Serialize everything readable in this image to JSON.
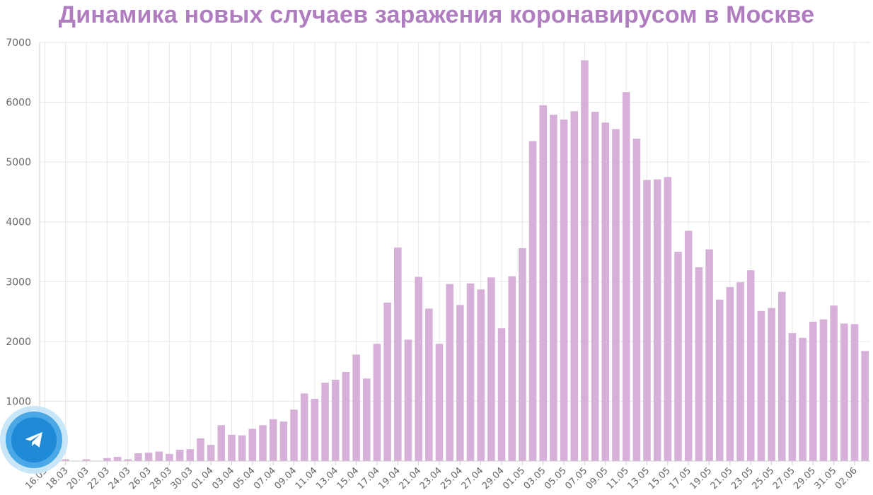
{
  "colors": {
    "title": "#b07cc0",
    "bar": "#d6b0d9",
    "grid": "#e6e6e6",
    "axis": "#cccccc",
    "tick_label": "#666666",
    "telegram_outer": "#c9e6f8",
    "telegram_mid": "#4aa8e6",
    "telegram_core": "#1f8ad6"
  },
  "telegram_button": {
    "icon": "telegram-paper-plane-icon"
  },
  "chart_data": {
    "type": "bar",
    "title": "Динамика новых случаев заражения коронавирусом в Москве",
    "xlabel": "",
    "ylabel": "",
    "ylim": [
      0,
      7000
    ],
    "yticks": [
      0,
      1000,
      2000,
      3000,
      4000,
      5000,
      6000,
      7000
    ],
    "grid": true,
    "legend": "none",
    "categories": [
      "16.03",
      "17.03",
      "18.03",
      "19.03",
      "20.03",
      "21.03",
      "22.03",
      "23.03",
      "24.03",
      "25.03",
      "26.03",
      "27.03",
      "28.03",
      "29.03",
      "30.03",
      "31.03",
      "01.04",
      "02.04",
      "03.04",
      "04.04",
      "05.04",
      "06.04",
      "07.04",
      "08.04",
      "09.04",
      "10.04",
      "11.04",
      "12.04",
      "13.04",
      "14.04",
      "15.04",
      "16.04",
      "17.04",
      "18.04",
      "19.04",
      "20.04",
      "21.04",
      "22.04",
      "23.04",
      "24.04",
      "25.04",
      "26.04",
      "27.04",
      "28.04",
      "29.04",
      "30.04",
      "01.05",
      "02.05",
      "03.05",
      "04.05",
      "05.05",
      "06.05",
      "07.05",
      "08.05",
      "09.05",
      "10.05",
      "11.05",
      "12.05",
      "13.05",
      "14.05",
      "15.05",
      "16.05",
      "17.05",
      "18.05",
      "19.05",
      "20.05",
      "21.05",
      "22.05",
      "23.05",
      "24.05",
      "25.05",
      "26.05",
      "27.05",
      "28.05",
      "29.05",
      "30.05",
      "31.05",
      "01.06",
      "02.06",
      "03.06"
    ],
    "tick_labels": [
      "16.03",
      "18.03",
      "20.03",
      "22.03",
      "24.03",
      "26.03",
      "28.03",
      "30.03",
      "01.04",
      "03.04",
      "05.04",
      "07.04",
      "09.04",
      "11.04",
      "13.04",
      "15.04",
      "17.04",
      "19.04",
      "21.04",
      "23.04",
      "25.04",
      "27.04",
      "29.04",
      "01.05",
      "03.05",
      "05.05",
      "07.05",
      "09.05",
      "11.05",
      "13.05",
      "15.05",
      "17.05",
      "19.05",
      "21.05",
      "23.05",
      "25.05",
      "27.05",
      "29.05",
      "31.05",
      "02.06"
    ],
    "values": [
      3,
      5,
      30,
      6,
      30,
      4,
      50,
      70,
      30,
      130,
      140,
      160,
      120,
      190,
      200,
      380,
      270,
      600,
      440,
      430,
      540,
      600,
      700,
      660,
      860,
      1130,
      1040,
      1310,
      1360,
      1490,
      1780,
      1380,
      1960,
      2650,
      3570,
      2030,
      3080,
      2550,
      1960,
      2960,
      2610,
      2970,
      2870,
      3070,
      2220,
      3090,
      3560,
      5350,
      5950,
      5790,
      5710,
      5850,
      6700,
      5840,
      5660,
      5550,
      6170,
      5390,
      4700,
      4710,
      4750,
      3500,
      3850,
      3240,
      3540,
      2700,
      2910,
      2990,
      3190,
      2510,
      2560,
      2830,
      2140,
      2060,
      2330,
      2370,
      2600,
      2300,
      2290,
      1840
    ]
  }
}
